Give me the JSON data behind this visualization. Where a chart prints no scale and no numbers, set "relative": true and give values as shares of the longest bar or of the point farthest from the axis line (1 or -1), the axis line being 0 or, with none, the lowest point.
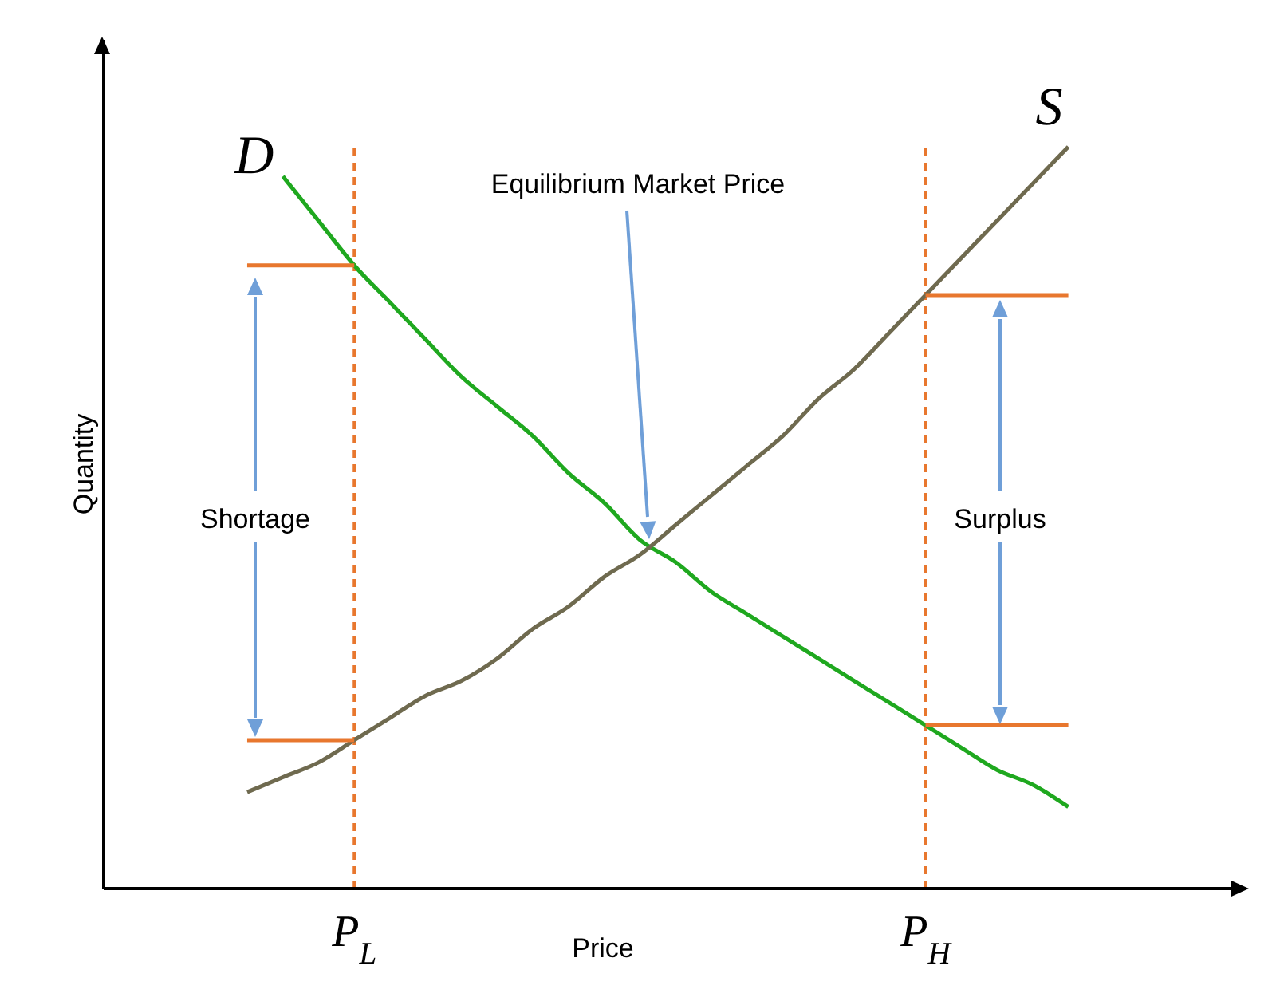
{
  "chart_data": {
    "type": "line",
    "relative": true,
    "xlabel": "Price",
    "ylabel": "Quantity",
    "categories": [
      null,
      null,
      null,
      "P$_{L}$",
      null,
      null,
      null,
      null,
      null,
      null,
      null,
      null,
      null,
      null,
      null,
      null,
      null,
      null,
      null,
      "P$_{H}$",
      null,
      null,
      null,
      null
    ],
    "series": [
      {
        "name": "D",
        "color": "#1fa81f",
        "values": [
          null,
          0.96,
          0.9,
          0.84,
          0.79,
          0.74,
          0.69,
          0.65,
          0.61,
          0.56,
          0.52,
          0.47,
          0.44,
          0.4,
          0.37,
          0.34,
          0.31,
          0.28,
          0.25,
          0.22,
          0.19,
          0.16,
          0.14,
          0.11
        ]
      },
      {
        "name": "S",
        "color": "#6f6a4f",
        "values": [
          0.13,
          0.15,
          0.17,
          0.2,
          0.23,
          0.26,
          0.28,
          0.31,
          0.35,
          0.38,
          0.42,
          0.45,
          0.49,
          0.53,
          0.57,
          0.61,
          0.66,
          0.7,
          0.75,
          0.8,
          0.85,
          0.9,
          0.95,
          1.0
        ]
      },
      {
        "color": "#e8772e",
        "values": [
          0.84,
          0.84,
          0.84,
          0.84,
          null,
          null,
          null,
          null,
          null,
          null,
          null,
          null,
          null,
          null,
          null,
          null,
          null,
          null,
          null,
          0.8,
          0.8,
          0.8,
          0.8,
          0.8
        ]
      },
      {
        "color": "#e8772e",
        "values": [
          0.2,
          0.2,
          0.2,
          0.2,
          null,
          null,
          null,
          null,
          null,
          null,
          null,
          null,
          null,
          null,
          null,
          null,
          null,
          null,
          null,
          0.22,
          0.22,
          0.22,
          0.22,
          0.22
        ]
      }
    ],
    "ref_lines": [
      {
        "axis": "x",
        "value": "P$_{L}$",
        "color": "#e8772e",
        "line_style": "dashed"
      },
      {
        "axis": "x",
        "value": "P$_{H}$",
        "color": "#e8772e",
        "line_style": "dashed"
      }
    ],
    "annotations": [
      "Equilibrium Market Price",
      "Shortage",
      "Surplus"
    ],
    "grid": false,
    "legend": false,
    "marker": "none"
  }
}
